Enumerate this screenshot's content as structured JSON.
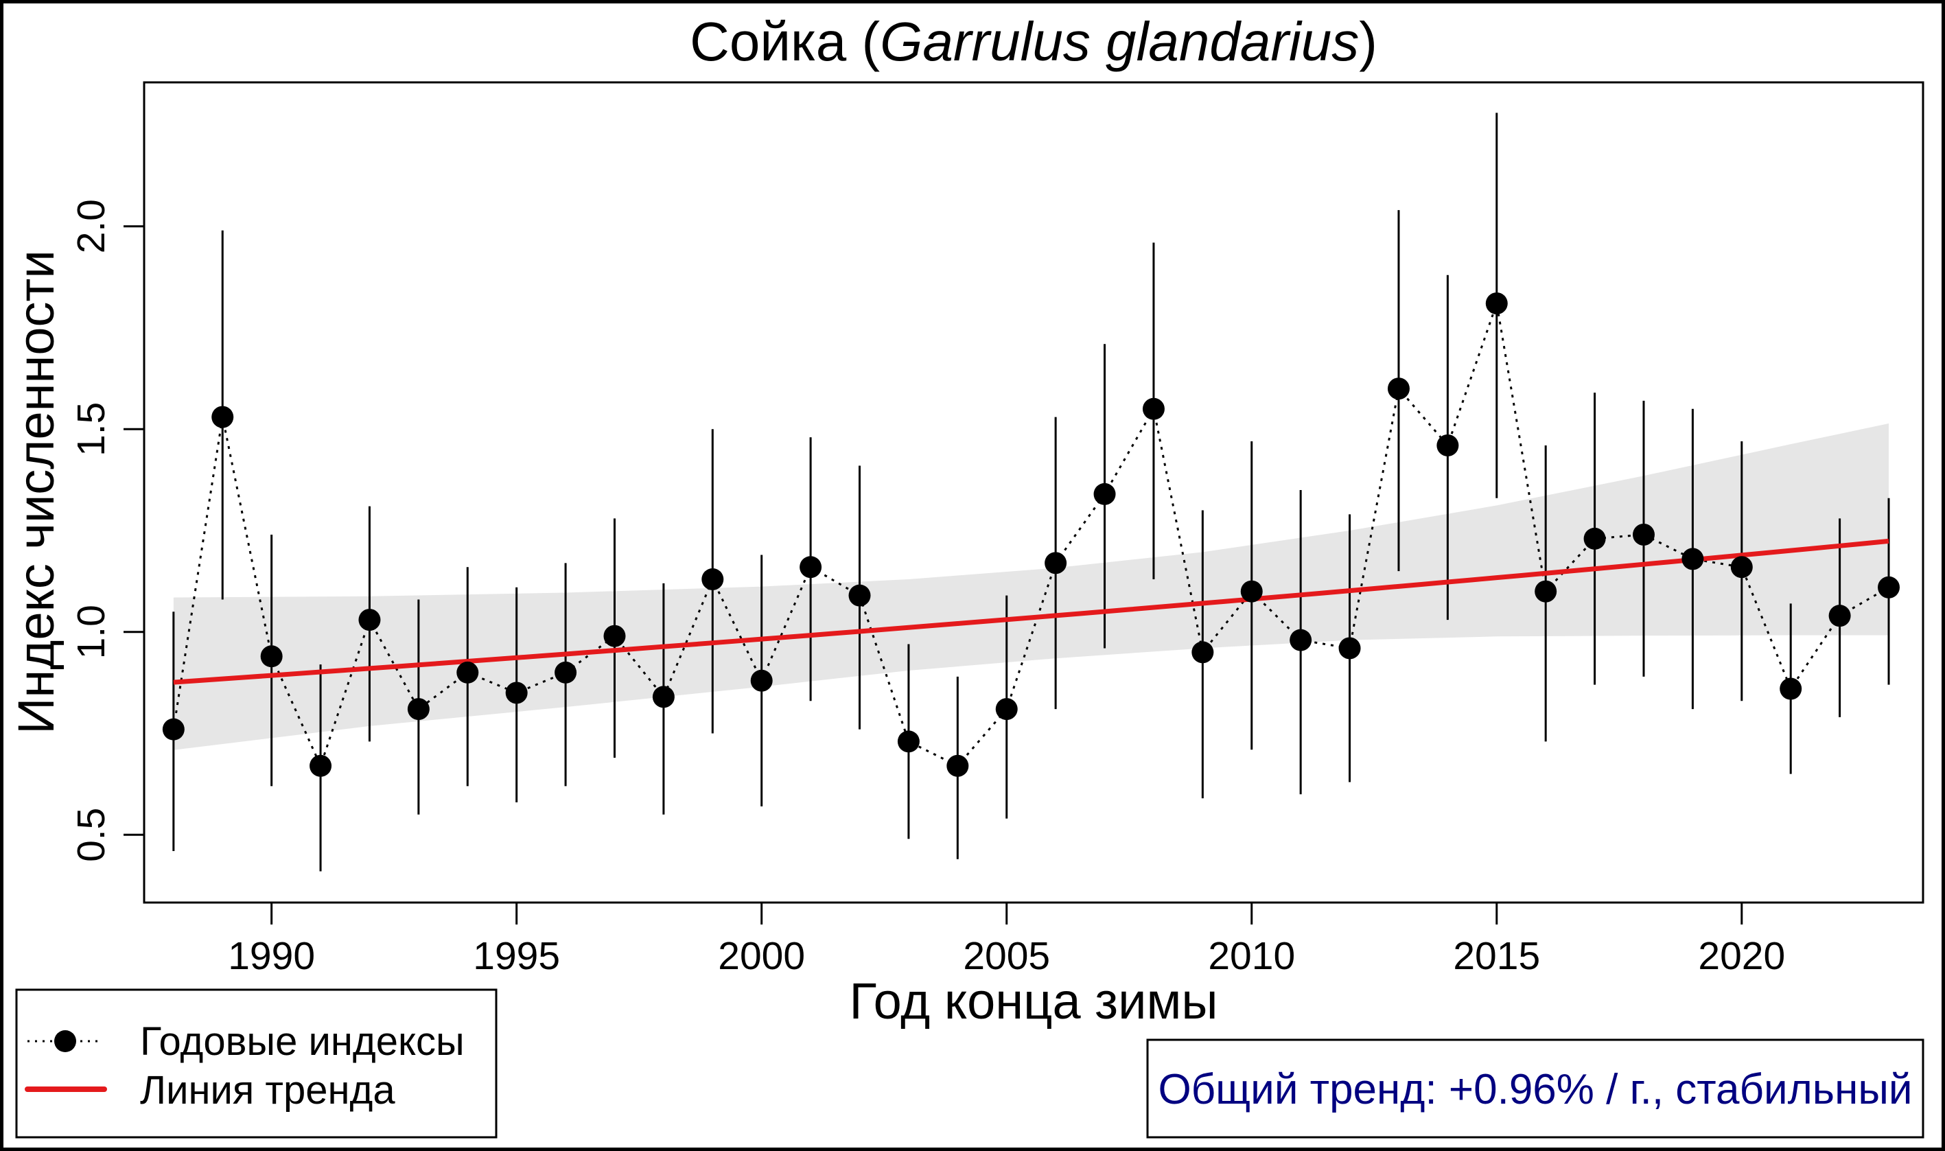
{
  "chart_data": {
    "type": "line",
    "title_main": "Сойка (",
    "title_latin": "Garrulus glandarius",
    "title_close": ")",
    "xlabel": "Год конца зимы",
    "ylabel": "Индекс численности",
    "xlim": [
      1987.4,
      2023.7
    ],
    "ylim": [
      0.333,
      2.355
    ],
    "x_ticks": [
      1990,
      1995,
      2000,
      2005,
      2010,
      2015,
      2020
    ],
    "x_tick_labels": [
      "1990",
      "1995",
      "2000",
      "2005",
      "2010",
      "2015",
      "2020"
    ],
    "y_ticks": [
      0.5,
      1.0,
      1.5,
      2.0
    ],
    "y_tick_labels": [
      "0.5",
      "1.0",
      "1.5",
      "2.0"
    ],
    "grid": false,
    "colors": {
      "points": "#000000",
      "trend": "#e41a1c",
      "band": "#e6e6e6",
      "trend_text": "#000080"
    },
    "series": [
      {
        "name": "Годовые индексы",
        "x": [
          1988,
          1989,
          1990,
          1991,
          1992,
          1993,
          1994,
          1995,
          1996,
          1997,
          1998,
          1999,
          2000,
          2001,
          2002,
          2003,
          2004,
          2005,
          2006,
          2007,
          2008,
          2009,
          2010,
          2011,
          2012,
          2013,
          2014,
          2015,
          2016,
          2017,
          2018,
          2019,
          2020,
          2021,
          2022,
          2023
        ],
        "values": [
          0.76,
          1.53,
          0.94,
          0.67,
          1.03,
          0.81,
          0.9,
          0.85,
          0.9,
          0.99,
          0.84,
          1.13,
          0.88,
          1.16,
          1.09,
          0.73,
          0.67,
          0.81,
          1.17,
          1.34,
          1.55,
          0.95,
          1.1,
          0.98,
          0.96,
          1.6,
          1.46,
          1.81,
          1.1,
          1.23,
          1.24,
          1.18,
          1.16,
          0.86,
          1.04,
          1.11
        ],
        "ci_upper": [
          1.05,
          1.99,
          1.24,
          0.92,
          1.31,
          1.08,
          1.16,
          1.11,
          1.17,
          1.28,
          1.12,
          1.5,
          1.19,
          1.48,
          1.41,
          0.97,
          0.89,
          1.09,
          1.53,
          1.71,
          1.96,
          1.3,
          1.47,
          1.35,
          1.29,
          2.04,
          1.88,
          2.28,
          1.46,
          1.59,
          1.57,
          1.55,
          1.47,
          1.07,
          1.28,
          1.33
        ],
        "ci_lower": [
          0.46,
          1.08,
          0.62,
          0.41,
          0.73,
          0.55,
          0.62,
          0.58,
          0.62,
          0.69,
          0.55,
          0.75,
          0.57,
          0.83,
          0.76,
          0.49,
          0.44,
          0.54,
          0.81,
          0.96,
          1.13,
          0.59,
          0.71,
          0.6,
          0.63,
          1.15,
          1.03,
          1.33,
          0.73,
          0.87,
          0.89,
          0.81,
          0.83,
          0.65,
          0.79,
          0.87
        ]
      }
    ],
    "trend": {
      "name": "Линия тренда",
      "x": [
        1988,
        2023
      ],
      "values": [
        0.876,
        1.224
      ],
      "band_x": [
        1988,
        1992,
        1996,
        2000,
        2003,
        2006,
        2009,
        2012,
        2015,
        2018,
        2021,
        2023
      ],
      "band_upper": [
        1.085,
        1.088,
        1.097,
        1.112,
        1.13,
        1.158,
        1.197,
        1.25,
        1.312,
        1.385,
        1.463,
        1.514
      ],
      "band_lower": [
        0.709,
        0.768,
        0.815,
        0.865,
        0.905,
        0.935,
        0.96,
        0.98,
        0.989,
        0.991,
        0.992,
        0.992
      ]
    },
    "legend": {
      "position": "bottom-left",
      "entries": [
        "Годовые индексы",
        "Линия тренда"
      ]
    },
    "annotation": "Общий тренд: +0.96% / г., стабильный"
  }
}
